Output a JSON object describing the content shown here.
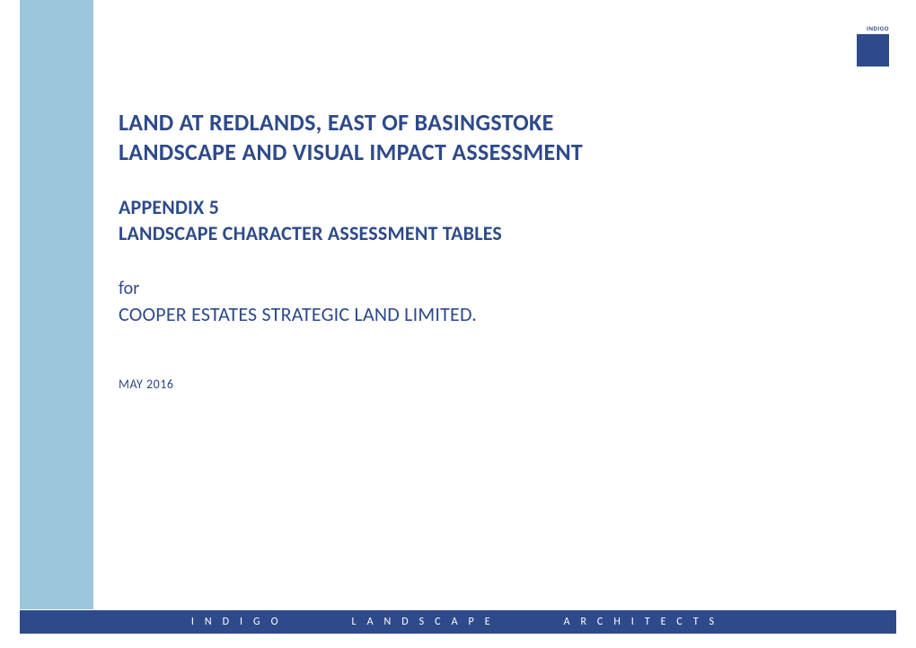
{
  "logo": {
    "text": "INDIGO",
    "bg_color": "#2e4a8a",
    "text_color": "#2e4a8a"
  },
  "sidebar": {
    "color": "#9cc6db"
  },
  "title": {
    "line1": "LAND AT REDLANDS, EAST OF BASINGSTOKE",
    "line2": "LANDSCAPE AND VISUAL IMPACT ASSESSMENT"
  },
  "appendix": {
    "line1": "APPENDIX 5",
    "line2": "LANDSCAPE CHARACTER ASSESSMENT TABLES"
  },
  "client": {
    "for_label": "for",
    "name": "COOPER ESTATES STRATEGIC LAND LIMITED."
  },
  "date": "MAY 2016",
  "footer": {
    "word1": "INDIGO",
    "word2": "LANDSCAPE",
    "word3": "ARCHITECTS",
    "bg_color": "#2e4a8a",
    "text_color": "#ffffff"
  },
  "colors": {
    "text_primary": "#2e4a8a",
    "page_bg": "#ffffff"
  }
}
